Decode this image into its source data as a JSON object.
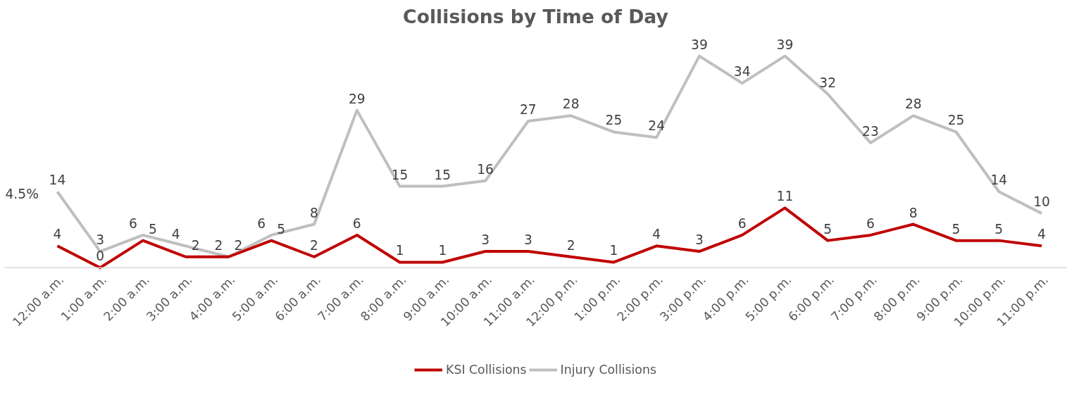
{
  "chart_data": {
    "type": "line",
    "title": "Collisions by Time of Day",
    "categories": [
      "12:00 a.m.",
      "1:00 a.m.",
      "2:00 a.m.",
      "3:00 a.m.",
      "4:00 a.m.",
      "5:00 a.m.",
      "6:00 a.m.",
      "7:00 a.m.",
      "8:00 a.m.",
      "9:00 a.m.",
      "10:00 a.m.",
      "11:00 a.m.",
      "12:00 p.m.",
      "1:00 p.m.",
      "2:00 p.m.",
      "3:00 p.m.",
      "4:00 p.m.",
      "5:00 p.m.",
      "6:00 p.m.",
      "7:00 p.m.",
      "8:00 p.m.",
      "9:00 p.m.",
      "10:00 p.m.",
      "11:00 p.m."
    ],
    "series": [
      {
        "name": "KSI Collisions",
        "color": "#c00000",
        "values": [
          4,
          0,
          5,
          2,
          2,
          5,
          2,
          6,
          1,
          1,
          3,
          3,
          2,
          1,
          4,
          3,
          6,
          11,
          5,
          6,
          8,
          5,
          5,
          4
        ]
      },
      {
        "name": "Injury Collisions",
        "color": "#bfbfbf",
        "values": [
          14,
          3,
          6,
          4,
          2,
          6,
          8,
          29,
          15,
          15,
          16,
          27,
          28,
          25,
          24,
          39,
          34,
          39,
          32,
          23,
          28,
          25,
          14,
          10
        ]
      }
    ],
    "annotations": [
      "4.5%"
    ],
    "data_labels": true,
    "grid": false,
    "legend": "bottom",
    "tick_labels": "x",
    "line_style": "solid",
    "marker": "none"
  }
}
